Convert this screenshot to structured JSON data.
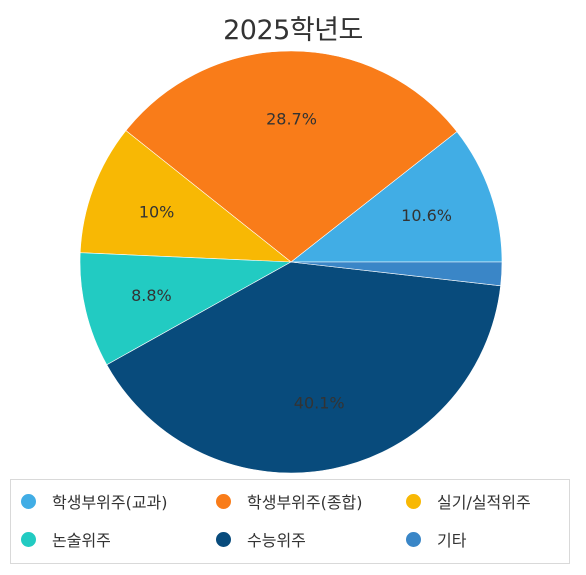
{
  "chart_data": {
    "type": "pie",
    "title": "2025학년도",
    "slices": [
      {
        "name": "학생부위주(교과)",
        "value": 10.6,
        "label": "10.6%",
        "color": "#41ade5"
      },
      {
        "name": "학생부위주(종합)",
        "value": 28.7,
        "label": "28.7%",
        "color": "#f97c19"
      },
      {
        "name": "실기/실적위주",
        "value": 10.0,
        "label": "10%",
        "color": "#f8b804"
      },
      {
        "name": "논술위주",
        "value": 8.8,
        "label": "8.8%",
        "color": "#22cbc2"
      },
      {
        "name": "수능위주",
        "value": 40.1,
        "label": "40.1%",
        "color": "#084b7c"
      },
      {
        "name": "기타",
        "value": 1.8,
        "label": "",
        "color": "#3a86c7"
      }
    ],
    "start": "3 o'clock, counter-clockwise",
    "legend_position": "bottom"
  }
}
